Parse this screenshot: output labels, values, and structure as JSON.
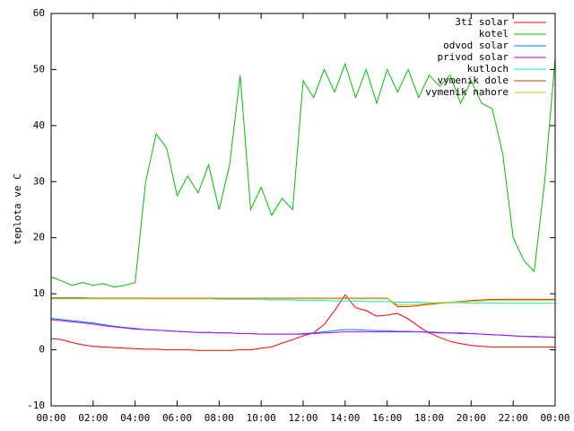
{
  "chart_data": {
    "type": "line",
    "ylabel": "teplota ve C",
    "x": [
      0,
      0.5,
      1,
      1.5,
      2,
      2.5,
      3,
      3.5,
      4,
      4.5,
      5,
      5.5,
      6,
      6.5,
      7,
      7.5,
      8,
      8.5,
      9,
      9.5,
      10,
      10.5,
      11,
      11.5,
      12,
      12.5,
      13,
      13.5,
      14,
      14.5,
      15,
      15.5,
      16,
      16.5,
      17,
      17.5,
      18,
      18.5,
      19,
      19.5,
      20,
      20.5,
      21,
      21.5,
      22,
      22.5,
      23,
      23.5,
      24
    ],
    "xlim": [
      0,
      24
    ],
    "xticks": [
      {
        "value": 0,
        "label": "00:00"
      },
      {
        "value": 2,
        "label": "02:00"
      },
      {
        "value": 4,
        "label": "04:00"
      },
      {
        "value": 6,
        "label": "06:00"
      },
      {
        "value": 8,
        "label": "08:00"
      },
      {
        "value": 10,
        "label": "10:00"
      },
      {
        "value": 12,
        "label": "12:00"
      },
      {
        "value": 14,
        "label": "14:00"
      },
      {
        "value": 16,
        "label": "16:00"
      },
      {
        "value": 18,
        "label": "18:00"
      },
      {
        "value": 20,
        "label": "20:00"
      },
      {
        "value": 22,
        "label": "22:00"
      },
      {
        "value": 24,
        "label": "00:00"
      }
    ],
    "ylim": [
      -10,
      60
    ],
    "yticks": [
      -10,
      0,
      10,
      20,
      30,
      40,
      50,
      60
    ],
    "legend": "upper right",
    "series": [
      {
        "name": "3ti solar",
        "color": "#ff0000",
        "values": [
          2,
          1.8,
          1.3,
          0.9,
          0.6,
          0.5,
          0.4,
          0.3,
          0.2,
          0.1,
          0.1,
          0,
          0,
          0,
          -0.1,
          -0.1,
          -0.1,
          -0.1,
          0,
          0,
          0.3,
          0.5,
          1.2,
          1.8,
          2.5,
          3,
          4.5,
          7,
          9.8,
          7.5,
          7,
          6,
          6.2,
          6.5,
          5.5,
          4.2,
          3,
          2.2,
          1.5,
          1.1,
          0.8,
          0.6,
          0.5,
          0.5,
          0.5,
          0.5,
          0.5,
          0.5,
          0.5
        ]
      },
      {
        "name": "kotel",
        "color": "#00c000",
        "values": [
          13,
          12.3,
          11.5,
          12,
          11.5,
          11.8,
          11.2,
          11.5,
          12,
          30,
          38.5,
          36,
          27.5,
          31,
          28,
          33,
          25,
          33,
          49,
          25,
          29,
          24,
          27,
          25,
          48,
          45,
          50,
          46,
          51,
          45,
          50,
          44,
          50,
          46,
          50,
          45,
          49,
          47,
          49,
          44,
          48,
          44,
          43,
          35,
          20,
          16,
          14,
          30,
          52
        ]
      },
      {
        "name": "odvod solar",
        "color": "#0080ff",
        "values": [
          5.6,
          5.4,
          5.2,
          5,
          4.8,
          4.5,
          4.2,
          4,
          3.8,
          3.6,
          3.5,
          3.4,
          3.3,
          3.2,
          3.1,
          3.1,
          3,
          3,
          2.9,
          2.9,
          2.8,
          2.8,
          2.8,
          2.8,
          2.9,
          3,
          3.2,
          3.4,
          3.6,
          3.6,
          3.5,
          3.4,
          3.4,
          3.3,
          3.3,
          3.2,
          3.2,
          3.1,
          3,
          3,
          2.9,
          2.8,
          2.7,
          2.6,
          2.5,
          2.4,
          2.3,
          2.3,
          2.2
        ]
      },
      {
        "name": "privod solar",
        "color": "#c000ff",
        "values": [
          5.4,
          5.2,
          5,
          4.8,
          4.6,
          4.3,
          4.1,
          3.9,
          3.7,
          3.6,
          3.5,
          3.4,
          3.3,
          3.2,
          3.1,
          3.1,
          3,
          3,
          2.9,
          2.9,
          2.8,
          2.8,
          2.8,
          2.8,
          2.8,
          2.9,
          3,
          3.1,
          3.2,
          3.2,
          3.2,
          3.2,
          3.2,
          3.2,
          3.2,
          3.2,
          3.1,
          3,
          3,
          2.9,
          2.9,
          2.8,
          2.7,
          2.6,
          2.5,
          2.4,
          2.4,
          2.3,
          2.2
        ]
      },
      {
        "name": "kutloch",
        "color": "#00eeee",
        "values": [
          9.3,
          9.3,
          9.3,
          9.3,
          9.2,
          9.2,
          9.2,
          9.2,
          9.2,
          9.2,
          9.1,
          9.1,
          9.1,
          9.1,
          9.1,
          9.1,
          9,
          9,
          9,
          9,
          9,
          8.9,
          8.9,
          8.9,
          8.8,
          8.8,
          8.8,
          8.7,
          8.7,
          8.7,
          8.6,
          8.6,
          8.6,
          8.5,
          8.5,
          8.5,
          8.4,
          8.4,
          8.4,
          8.4,
          8.3,
          8.3,
          8.3,
          8.3,
          8.3,
          8.3,
          8.3,
          8.3,
          8.3
        ]
      },
      {
        "name": "vymenik dole",
        "color": "#c04000",
        "values": [
          9.2,
          9.2,
          9.2,
          9.2,
          9.2,
          9.2,
          9.2,
          9.2,
          9.2,
          9.2,
          9.2,
          9.2,
          9.2,
          9.2,
          9.2,
          9.2,
          9.2,
          9.2,
          9.2,
          9.2,
          9.2,
          9.2,
          9.2,
          9.2,
          9.2,
          9.2,
          9.2,
          9.2,
          9.2,
          9.2,
          9.2,
          9.2,
          9.2,
          7.7,
          7.7,
          7.9,
          8.1,
          8.3,
          8.5,
          8.6,
          8.8,
          8.9,
          9,
          9,
          9,
          9,
          9,
          9,
          9
        ]
      },
      {
        "name": "vymenik nahore",
        "color": "#c8c800",
        "values": [
          9.1,
          9.1,
          9.1,
          9.1,
          9.1,
          9.1,
          9.1,
          9.1,
          9.1,
          9.1,
          9.1,
          9.1,
          9.1,
          9.1,
          9.1,
          9.1,
          9.1,
          9.1,
          9.1,
          9.1,
          9.1,
          9.1,
          9.1,
          9.1,
          9.1,
          9.1,
          9.1,
          9.1,
          9.1,
          9.1,
          9.1,
          9.1,
          9.1,
          8,
          8,
          8.1,
          8.3,
          8.4,
          8.5,
          8.5,
          8.6,
          8.7,
          8.8,
          8.8,
          8.8,
          8.8,
          8.8,
          8.8,
          8.8
        ]
      }
    ]
  }
}
